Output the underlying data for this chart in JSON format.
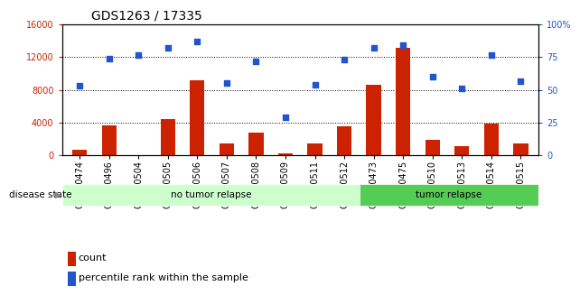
{
  "title": "GDS1263 / 17335",
  "samples": [
    "GSM50474",
    "GSM50496",
    "GSM50504",
    "GSM50505",
    "GSM50506",
    "GSM50507",
    "GSM50508",
    "GSM50509",
    "GSM50511",
    "GSM50512",
    "GSM50473",
    "GSM50475",
    "GSM50510",
    "GSM50513",
    "GSM50514",
    "GSM50515"
  ],
  "counts": [
    700,
    3600,
    0,
    4400,
    9200,
    1400,
    2800,
    200,
    1500,
    3500,
    8600,
    13200,
    1900,
    1100,
    3900,
    1400
  ],
  "percentiles": [
    53,
    74,
    77,
    82,
    87,
    55,
    72,
    29,
    54,
    73,
    82,
    84,
    60,
    51,
    77,
    57
  ],
  "group_labels": [
    "no tumor relapse",
    "tumor relapse"
  ],
  "group_sizes": [
    10,
    6
  ],
  "group_colors": [
    "#ccffcc",
    "#55cc55"
  ],
  "bar_color": "#cc2200",
  "scatter_color": "#2255cc",
  "ylim_left": [
    0,
    16000
  ],
  "ylim_right": [
    0,
    100
  ],
  "yticks_left": [
    0,
    4000,
    8000,
    12000,
    16000
  ],
  "yticks_right": [
    0,
    25,
    50,
    75,
    100
  ],
  "ytick_labels_left": [
    "0",
    "4000",
    "8000",
    "12000",
    "16000"
  ],
  "ytick_labels_right": [
    "0",
    "25",
    "50",
    "75",
    "100%"
  ],
  "disease_state_label": "disease state",
  "legend_count_label": "count",
  "legend_pct_label": "percentile rank within the sample",
  "bar_width": 0.5,
  "title_fontsize": 10,
  "tick_fontsize": 7,
  "label_fontsize": 8
}
